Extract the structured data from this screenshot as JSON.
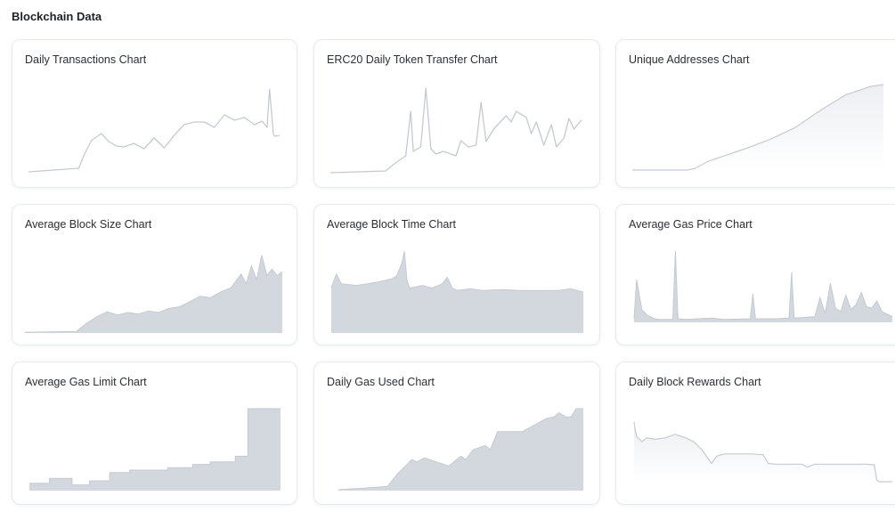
{
  "page": {
    "section_title": "Blockchain Data"
  },
  "colors": {
    "fill": "#d3d7de",
    "line": "#c5cad2",
    "fade_top": "#eceef2"
  },
  "chart_data": [
    {
      "title": "Daily Transactions Chart",
      "type": "line",
      "style": "line",
      "x": [
        0,
        0.2,
        0.22,
        0.25,
        0.29,
        0.32,
        0.35,
        0.38,
        0.42,
        0.46,
        0.5,
        0.54,
        0.58,
        0.62,
        0.66,
        0.7,
        0.74,
        0.78,
        0.82,
        0.86,
        0.9,
        0.93,
        0.95,
        0.96,
        0.975,
        0.98,
        1
      ],
      "values": [
        0.02,
        0.06,
        0.2,
        0.37,
        0.45,
        0.36,
        0.31,
        0.3,
        0.34,
        0.28,
        0.4,
        0.29,
        0.43,
        0.55,
        0.58,
        0.58,
        0.52,
        0.66,
        0.6,
        0.63,
        0.55,
        0.59,
        0.52,
        0.95,
        0.45,
        0.42,
        0.43
      ]
    },
    {
      "title": "ERC20 Daily Token Transfer Chart",
      "type": "line",
      "style": "line",
      "x": [
        0,
        0.22,
        0.25,
        0.3,
        0.32,
        0.33,
        0.36,
        0.38,
        0.4,
        0.42,
        0.45,
        0.5,
        0.52,
        0.55,
        0.58,
        0.6,
        0.62,
        0.65,
        0.7,
        0.72,
        0.74,
        0.78,
        0.8,
        0.82,
        0.85,
        0.88,
        0.9,
        0.93,
        0.95,
        0.97,
        0.99,
        1
      ],
      "values": [
        0.01,
        0.03,
        0.1,
        0.2,
        0.7,
        0.25,
        0.3,
        0.96,
        0.28,
        0.22,
        0.25,
        0.2,
        0.37,
        0.3,
        0.32,
        0.8,
        0.36,
        0.5,
        0.65,
        0.58,
        0.7,
        0.63,
        0.45,
        0.58,
        0.32,
        0.55,
        0.3,
        0.4,
        0.62,
        0.5,
        0.57,
        0.6
      ]
    },
    {
      "title": "Unique Addresses Chart",
      "type": "area",
      "style": "gradient",
      "x": [
        0,
        0.22,
        0.25,
        0.3,
        0.35,
        0.45,
        0.55,
        0.65,
        0.75,
        0.85,
        0.95,
        1
      ],
      "values": [
        0.0,
        0.0,
        0.02,
        0.1,
        0.15,
        0.25,
        0.36,
        0.5,
        0.7,
        0.88,
        0.98,
        1.0
      ]
    },
    {
      "title": "Average Block Size Chart",
      "type": "bar",
      "style": "area",
      "x": [
        0,
        0.2,
        0.24,
        0.28,
        0.32,
        0.36,
        0.4,
        0.44,
        0.48,
        0.52,
        0.56,
        0.6,
        0.64,
        0.68,
        0.72,
        0.76,
        0.8,
        0.84,
        0.86,
        0.88,
        0.9,
        0.92,
        0.94,
        0.96,
        0.98,
        1
      ],
      "values": [
        0.01,
        0.02,
        0.12,
        0.2,
        0.26,
        0.22,
        0.25,
        0.23,
        0.27,
        0.25,
        0.3,
        0.32,
        0.38,
        0.45,
        0.43,
        0.5,
        0.55,
        0.72,
        0.6,
        0.82,
        0.65,
        0.95,
        0.7,
        0.78,
        0.7,
        0.75
      ]
    },
    {
      "title": "Average Block Time Chart",
      "type": "bar",
      "style": "area",
      "x": [
        0,
        0.02,
        0.04,
        0.1,
        0.18,
        0.24,
        0.26,
        0.28,
        0.29,
        0.3,
        0.31,
        0.33,
        0.36,
        0.4,
        0.44,
        0.46,
        0.48,
        0.5,
        0.55,
        0.6,
        0.68,
        0.75,
        0.82,
        0.9,
        0.95,
        1
      ],
      "values": [
        0.55,
        0.72,
        0.6,
        0.58,
        0.62,
        0.66,
        0.7,
        0.85,
        1.0,
        0.65,
        0.55,
        0.56,
        0.58,
        0.55,
        0.6,
        0.68,
        0.55,
        0.52,
        0.54,
        0.52,
        0.53,
        0.52,
        0.52,
        0.52,
        0.54,
        0.5
      ]
    },
    {
      "title": "Average Gas Price Chart",
      "type": "bar",
      "style": "area",
      "x": [
        0,
        0.01,
        0.03,
        0.05,
        0.08,
        0.1,
        0.15,
        0.16,
        0.17,
        0.2,
        0.25,
        0.3,
        0.35,
        0.45,
        0.46,
        0.47,
        0.55,
        0.6,
        0.61,
        0.62,
        0.7,
        0.72,
        0.74,
        0.76,
        0.78,
        0.8,
        0.82,
        0.84,
        0.86,
        0.88,
        0.9,
        0.92,
        0.94,
        0.96,
        1
      ],
      "values": [
        0.05,
        0.6,
        0.18,
        0.1,
        0.05,
        0.04,
        0.04,
        1.0,
        0.05,
        0.04,
        0.05,
        0.06,
        0.04,
        0.05,
        0.4,
        0.05,
        0.05,
        0.06,
        0.7,
        0.06,
        0.08,
        0.35,
        0.12,
        0.55,
        0.2,
        0.15,
        0.38,
        0.18,
        0.25,
        0.42,
        0.22,
        0.2,
        0.3,
        0.15,
        0.08
      ]
    },
    {
      "title": "Average Gas Limit Chart",
      "type": "bar",
      "style": "steps",
      "x": [
        0,
        0.08,
        0.17,
        0.24,
        0.32,
        0.4,
        0.55,
        0.65,
        0.72,
        0.82,
        0.87,
        1
      ],
      "values": [
        0.09,
        0.15,
        0.07,
        0.12,
        0.22,
        0.25,
        0.28,
        0.32,
        0.35,
        0.42,
        1.0,
        1.0
      ]
    },
    {
      "title": "Daily Gas Used Chart",
      "type": "bar",
      "style": "area",
      "x": [
        0,
        0.1,
        0.2,
        0.24,
        0.28,
        0.3,
        0.32,
        0.35,
        0.4,
        0.45,
        0.5,
        0.52,
        0.55,
        0.6,
        0.62,
        0.65,
        0.7,
        0.75,
        0.8,
        0.85,
        0.88,
        0.9,
        0.93,
        0.95,
        0.97,
        1
      ],
      "values": [
        0.01,
        0.03,
        0.05,
        0.2,
        0.32,
        0.38,
        0.35,
        0.4,
        0.35,
        0.3,
        0.42,
        0.38,
        0.5,
        0.55,
        0.5,
        0.72,
        0.72,
        0.72,
        0.8,
        0.88,
        0.9,
        0.95,
        0.9,
        0.9,
        1.0,
        1.0
      ]
    },
    {
      "title": "Daily Block Rewards Chart",
      "type": "line",
      "style": "gradient",
      "x": [
        0,
        0.005,
        0.01,
        0.03,
        0.05,
        0.08,
        0.12,
        0.16,
        0.2,
        0.23,
        0.26,
        0.28,
        0.3,
        0.32,
        0.35,
        0.4,
        0.45,
        0.5,
        0.52,
        0.55,
        0.6,
        0.65,
        0.67,
        0.7,
        0.75,
        0.8,
        0.85,
        0.9,
        0.93,
        0.94,
        0.95,
        1
      ],
      "values": [
        0.82,
        0.7,
        0.62,
        0.55,
        0.6,
        0.58,
        0.6,
        0.65,
        0.6,
        0.55,
        0.45,
        0.35,
        0.25,
        0.35,
        0.38,
        0.38,
        0.38,
        0.37,
        0.25,
        0.24,
        0.24,
        0.24,
        0.2,
        0.24,
        0.24,
        0.24,
        0.24,
        0.24,
        0.23,
        0.02,
        0.0,
        0.0
      ]
    }
  ]
}
